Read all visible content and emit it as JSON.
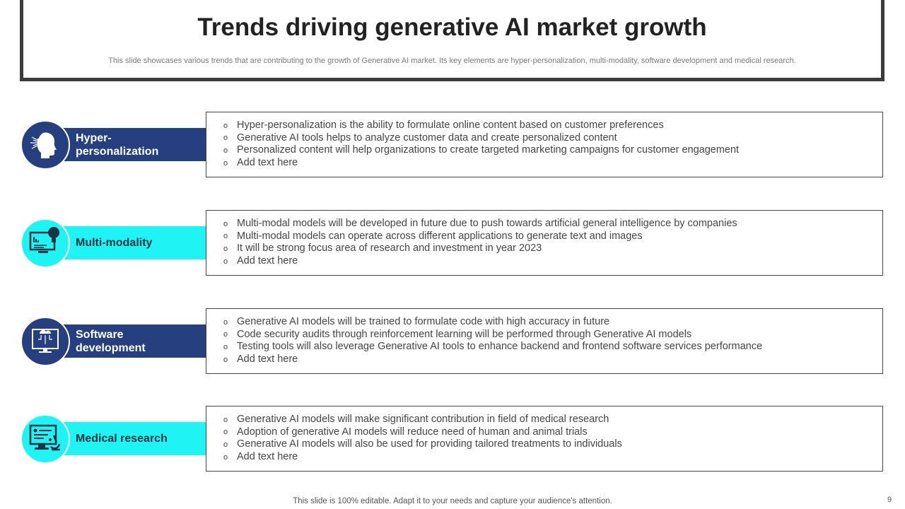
{
  "header": {
    "title": "Trends driving generative AI market growth",
    "subtitle": "This slide showcases various trends that are contributing to the growth of Generative AI market. Its key elements are hyper-personalization, multi-modality, software development and medical research."
  },
  "colors": {
    "navy": "#263f7e",
    "cyan": "#1ff3f3"
  },
  "trends": [
    {
      "label": "Hyper-personalization",
      "label_line1": "Hyper-",
      "label_line2": "personalization",
      "icon": "head-speaking-icon",
      "items": [
        "Hyper-personalization is the ability to formulate online content based on customer preferences",
        "Generative AI tools helps to analyze customer data and create personalized content",
        "Personalized content will help organizations to create targeted marketing campaigns for customer engagement",
        "Add text here"
      ]
    },
    {
      "label": "Multi-modality",
      "label_line1": "Multi-modality",
      "label_line2": "",
      "icon": "monitor-brain-bulb-icon",
      "items": [
        "Multi-modal models will be developed in future due to push towards artificial general intelligence by companies",
        "Multi-modal models can operate across different applications to generate text and images",
        "It will be strong focus area of research and investment in year 2023",
        "Add text here"
      ]
    },
    {
      "label": "Software development",
      "label_line1": "Software",
      "label_line2": "development",
      "icon": "monitor-cloud-gear-icon",
      "items": [
        "Generative AI models will be trained to formulate code with high accuracy in future",
        "Code security audits through reinforcement learning will be performed through Generative AI models",
        "Testing tools will also leverage Generative AI tools to enhance backend and frontend software services performance",
        "Add text here"
      ]
    },
    {
      "label": "Medical research",
      "label_line1": "Medical research",
      "label_line2": "",
      "icon": "monitor-microscope-icon",
      "items": [
        "Generative AI models will make significant contribution in field of medical research",
        "Adoption of generative AI models will reduce need of human and animal trials",
        "Generative AI models will also be used for providing tailored treatments to individuals",
        "Add text here"
      ]
    }
  ],
  "bullet": "o",
  "footer": "This slide is 100% editable. Adapt it to your needs and capture your audience's attention.",
  "page_number": "9"
}
